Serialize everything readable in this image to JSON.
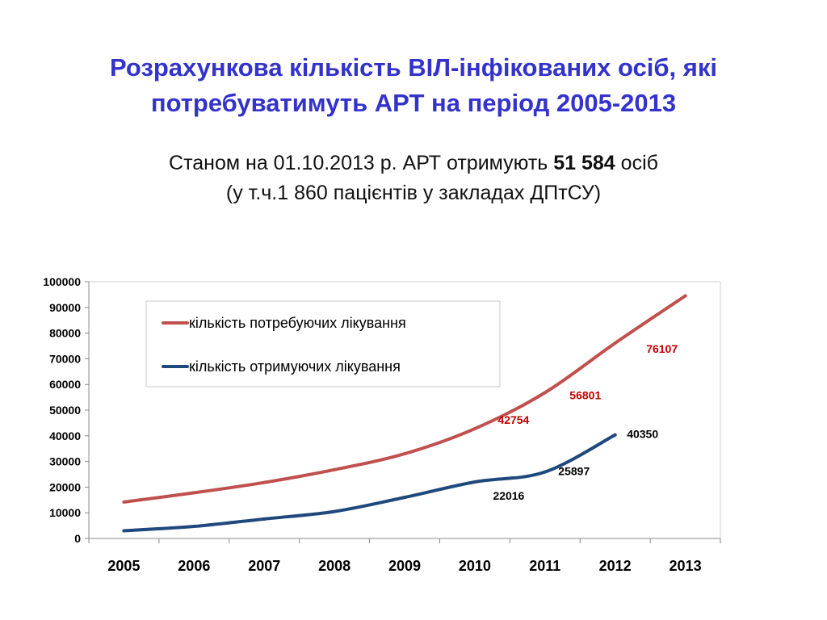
{
  "slide": {
    "title_line1": "Розрахункова кількість ВІЛ-інфікованих осіб, які",
    "title_line2": "потребуватимуть АРТ на період 2005-2013",
    "subtitle_line1_pre": "Станом на 01.10.2013 р. АРТ отримують ",
    "subtitle_line1_bold": "51 584",
    "subtitle_line1_post": " осіб",
    "subtitle_line2": "(у т.ч.1 860 пацієнтів у закладах ДПтСУ)"
  },
  "chart_data": {
    "type": "line",
    "x": [
      "2005",
      "2006",
      "2007",
      "2008",
      "2009",
      "2010",
      "2011",
      "2012",
      "2013"
    ],
    "ylim": [
      0,
      100000
    ],
    "yticks": [
      0,
      10000,
      20000,
      30000,
      40000,
      50000,
      60000,
      70000,
      80000,
      90000,
      100000
    ],
    "grid": false,
    "legend_position": "top-left",
    "series": [
      {
        "name": "кількість потребуючих лікування",
        "color": "#c0504d",
        "values": [
          14200,
          17800,
          21800,
          26800,
          33000,
          42754,
          56801,
          76107,
          94500
        ],
        "data_labels": {
          "5": "42754",
          "6": "56801",
          "7": "76107"
        }
      },
      {
        "name": "кількість отримуючих лікування",
        "color": "#1f497d",
        "values": [
          3000,
          4700,
          7600,
          10500,
          16000,
          22016,
          25897,
          40350,
          null
        ],
        "data_labels": {
          "5": "22016",
          "6": "25897",
          "7": "40350"
        }
      }
    ]
  }
}
